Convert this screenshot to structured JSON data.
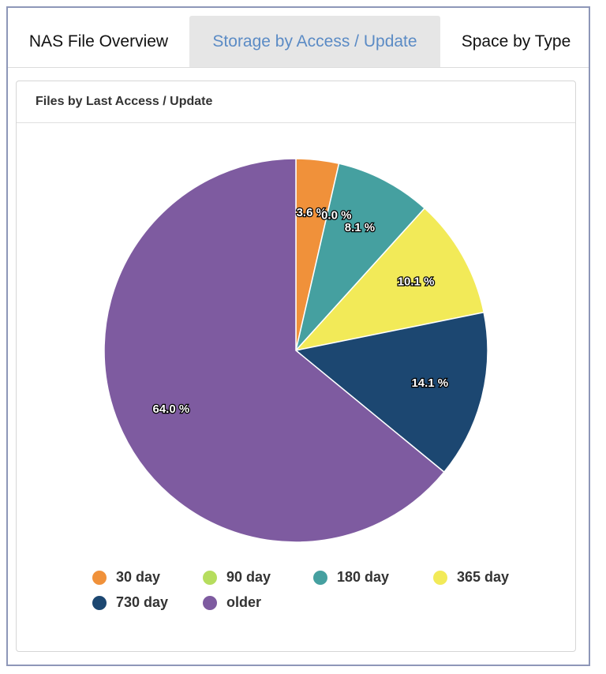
{
  "tabs": [
    {
      "label": "NAS File Overview",
      "active": false
    },
    {
      "label": "Storage by Access / Update",
      "active": true
    },
    {
      "label": "Space by Type",
      "active": false
    }
  ],
  "panel": {
    "title": "Files by Last Access / Update"
  },
  "colors": {
    "active_tab_text": "#5b8bc5",
    "active_tab_bg": "#e6e6e6",
    "frame_border": "#8e97b8"
  },
  "chart_data": {
    "type": "pie",
    "title": "Files by Last Access / Update",
    "legend_position": "bottom",
    "slices": [
      {
        "label": "30 day",
        "value": 3.6,
        "display": "3.6 %",
        "color": "#f0913a"
      },
      {
        "label": "90 day",
        "value": 0.0,
        "display": "0.0 %",
        "color": "#b6dd5e"
      },
      {
        "label": "180 day",
        "value": 8.1,
        "display": "8.1 %",
        "color": "#45a0a0"
      },
      {
        "label": "365 day",
        "value": 10.1,
        "display": "10.1 %",
        "color": "#f2ea58"
      },
      {
        "label": "730 day",
        "value": 14.1,
        "display": "14.1 %",
        "color": "#1c4771"
      },
      {
        "label": "older",
        "value": 64.0,
        "display": "64.0 %",
        "color": "#7e5ba0"
      }
    ]
  }
}
